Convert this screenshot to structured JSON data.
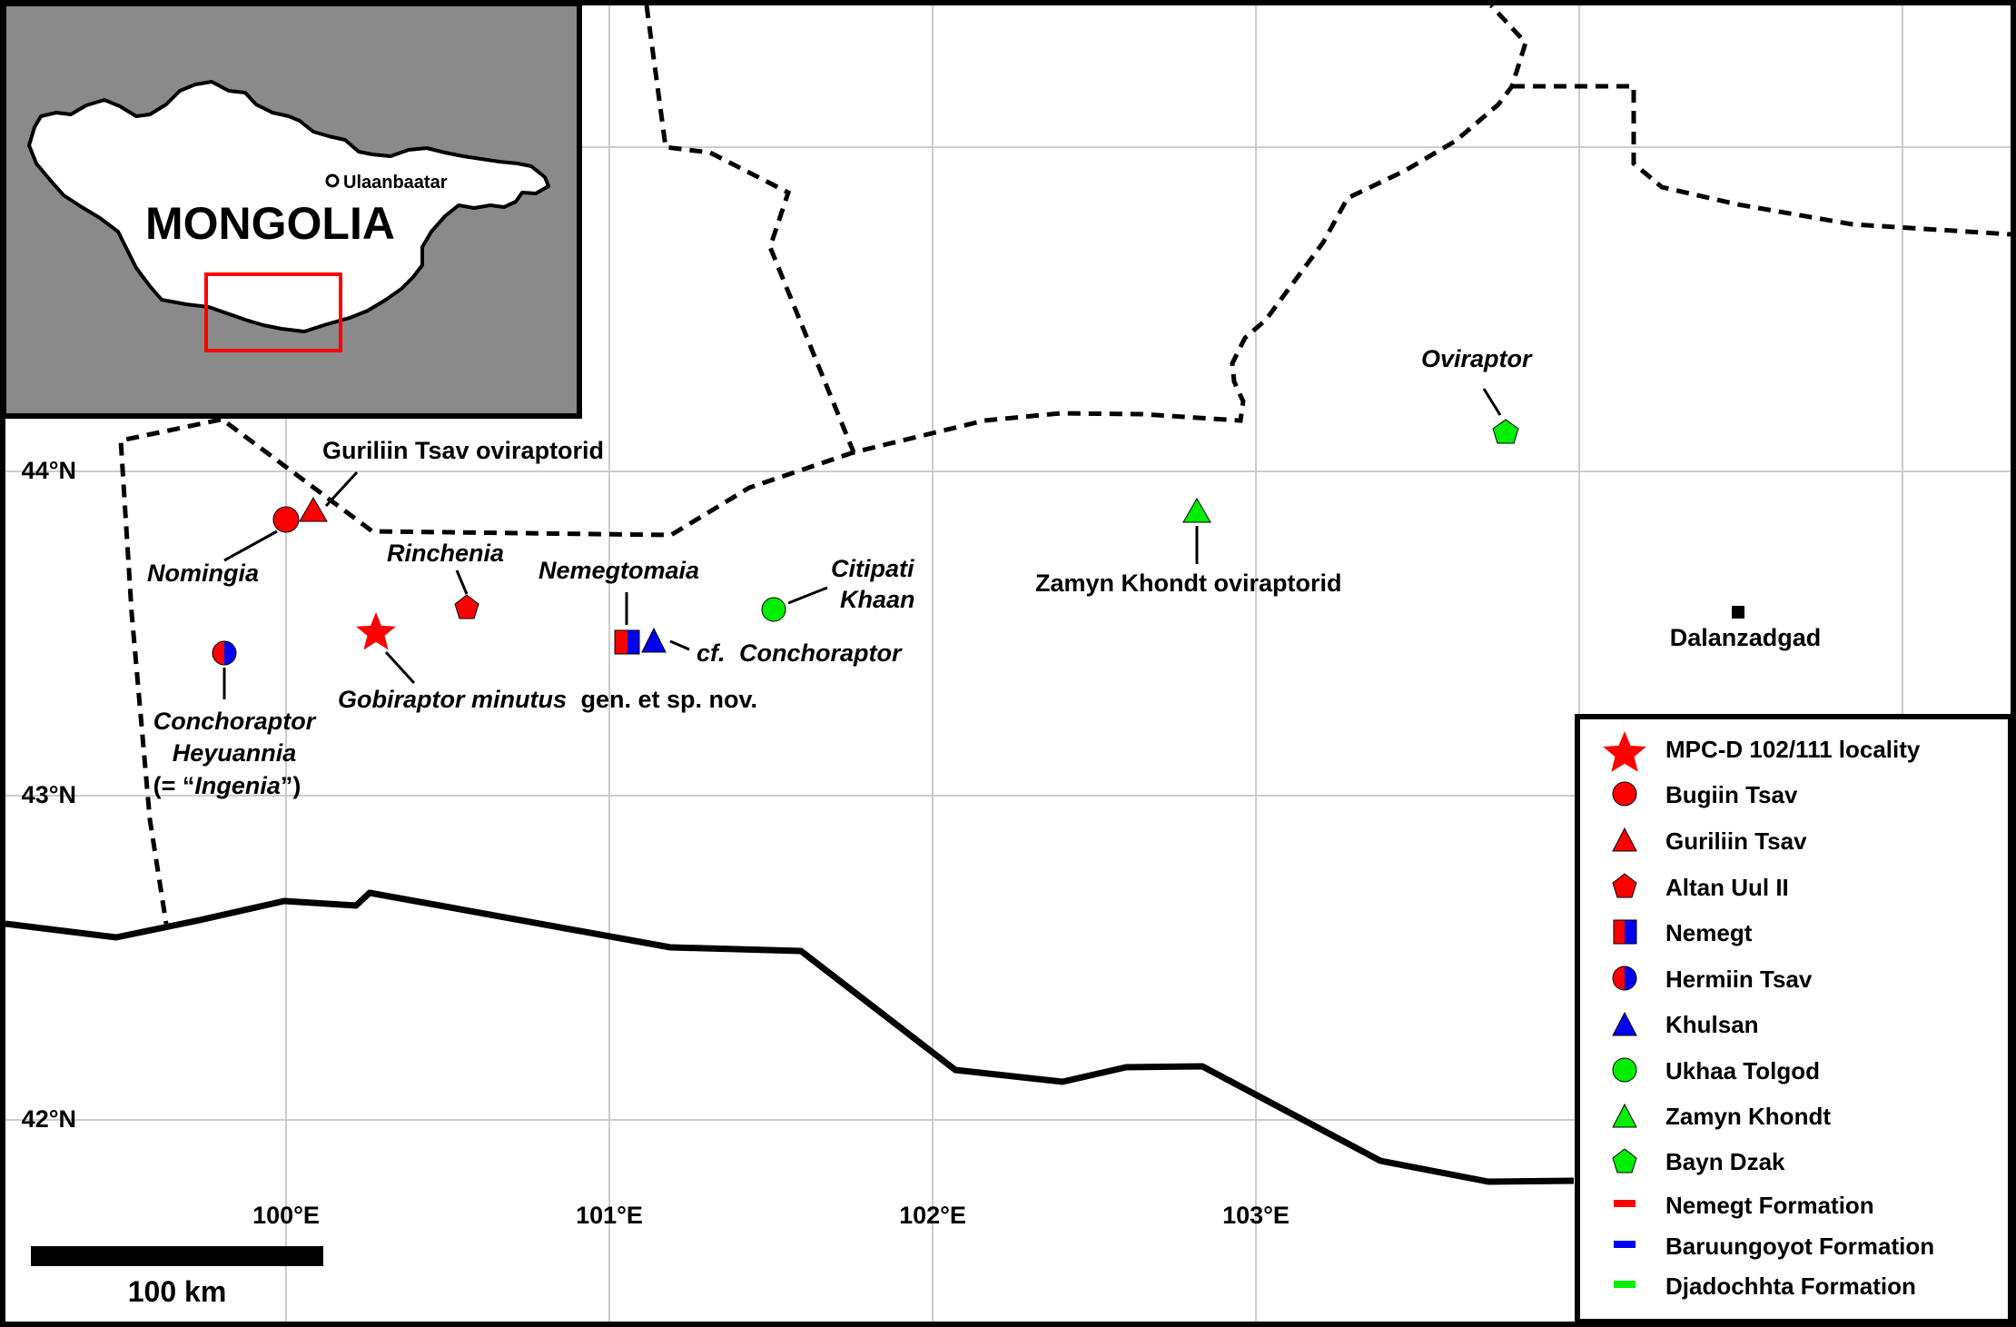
{
  "inset": {
    "country": "MONGOLIA",
    "capital": "Ulaanbaatar"
  },
  "axes": {
    "latitudes": [
      "44°N",
      "43°N",
      "42°N"
    ],
    "longitudes": [
      "100°E",
      "101°E",
      "102°E",
      "103°E"
    ]
  },
  "scale_bar": {
    "label": "100 km"
  },
  "city": {
    "label": "Dalanzadgad"
  },
  "labels": {
    "guriliin": "Guriliin Tsav oviraptorid",
    "nomingia": "Nomingia",
    "rinchenia": "Rinchenia",
    "nemegtomaia": "Nemegtomaia",
    "citipati": "Citipati",
    "khaan": "Khaan",
    "oviraptor": "Oviraptor",
    "zamyn": "Zamyn Khondt oviraptorid",
    "conchoraptor_cf_prefix": "cf.",
    "conchoraptor_cf": "Conchoraptor",
    "gobiraptor_name": "Gobiraptor minutus",
    "gobiraptor_suffix": "gen. et sp. nov.",
    "conchoraptor": "Conchoraptor",
    "heyuannia": "Heyuannia",
    "ingenia_open": "(= “",
    "ingenia": "Ingenia",
    "ingenia_close": "”)"
  },
  "colors": {
    "red": "#ff0000",
    "blue": "#0000ee",
    "green": "#00ee00",
    "inset_bg": "#8a8a8a",
    "grid": "#cccccc"
  },
  "legend": [
    {
      "symbol": "star",
      "color": "red",
      "label": "MPC-D 102/111 locality"
    },
    {
      "symbol": "circle",
      "color": "red",
      "label": "Bugiin Tsav"
    },
    {
      "symbol": "triangle",
      "color": "red",
      "label": "Guriliin Tsav"
    },
    {
      "symbol": "pentagon",
      "color": "red",
      "label": "Altan Uul II"
    },
    {
      "symbol": "split-square",
      "color": "red/blue",
      "label": "Nemegt"
    },
    {
      "symbol": "split-circle",
      "color": "red/blue",
      "label": "Hermiin Tsav"
    },
    {
      "symbol": "triangle",
      "color": "blue",
      "label": "Khulsan"
    },
    {
      "symbol": "circle",
      "color": "green",
      "label": "Ukhaa Tolgod"
    },
    {
      "symbol": "triangle",
      "color": "green",
      "label": "Zamyn Khondt"
    },
    {
      "symbol": "pentagon",
      "color": "green",
      "label": "Bayn Dzak"
    },
    {
      "symbol": "dash",
      "color": "red",
      "label": "Nemegt Formation"
    },
    {
      "symbol": "dash",
      "color": "blue",
      "label": "Baruungoyot Formation"
    },
    {
      "symbol": "dash",
      "color": "green",
      "label": "Djadochhta Formation"
    }
  ]
}
